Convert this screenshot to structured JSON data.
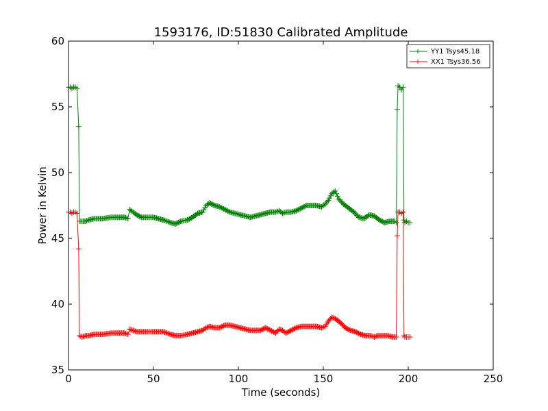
{
  "chart_data": {
    "type": "line",
    "title": "1593176, ID:51830 Calibrated Amplitude",
    "xlabel": "Time (seconds)",
    "ylabel": "Power in Kelvin",
    "xlim": [
      0,
      250
    ],
    "ylim": [
      35,
      60
    ],
    "xticks": [
      0,
      50,
      100,
      150,
      200,
      250
    ],
    "yticks": [
      35,
      40,
      45,
      50,
      55,
      60
    ],
    "grid": false,
    "legend_position": "top-right",
    "series": [
      {
        "name": "YY1 Tsys45.18",
        "color": "#008000",
        "marker": "+",
        "points": [
          [
            0,
            56.5
          ],
          [
            1,
            56.5
          ],
          [
            2,
            56.4
          ],
          [
            3,
            56.5
          ],
          [
            4,
            56.5
          ],
          [
            5,
            56.4
          ],
          [
            6,
            53.5
          ],
          [
            6.5,
            46.3
          ],
          [
            8,
            46.3
          ],
          [
            10,
            46.3
          ],
          [
            12,
            46.4
          ],
          [
            15,
            46.5
          ],
          [
            20,
            46.5
          ],
          [
            25,
            46.6
          ],
          [
            30,
            46.6
          ],
          [
            33,
            46.6
          ],
          [
            35,
            46.5
          ],
          [
            36,
            47.2
          ],
          [
            38,
            47.0
          ],
          [
            40,
            46.8
          ],
          [
            43,
            46.6
          ],
          [
            46,
            46.6
          ],
          [
            50,
            46.6
          ],
          [
            53,
            46.5
          ],
          [
            56,
            46.4
          ],
          [
            60,
            46.2
          ],
          [
            63,
            46.1
          ],
          [
            66,
            46.3
          ],
          [
            70,
            46.4
          ],
          [
            73,
            46.6
          ],
          [
            76,
            46.9
          ],
          [
            79,
            47.0
          ],
          [
            81,
            47.5
          ],
          [
            83,
            47.7
          ],
          [
            86,
            47.5
          ],
          [
            89,
            47.4
          ],
          [
            92,
            47.2
          ],
          [
            95,
            47.0
          ],
          [
            98,
            46.9
          ],
          [
            101,
            46.8
          ],
          [
            104,
            46.7
          ],
          [
            107,
            46.6
          ],
          [
            110,
            46.7
          ],
          [
            113,
            46.8
          ],
          [
            116,
            46.9
          ],
          [
            119,
            47.0
          ],
          [
            122,
            47.0
          ],
          [
            124,
            47.1
          ],
          [
            126,
            46.9
          ],
          [
            128,
            47.0
          ],
          [
            131,
            47.0
          ],
          [
            134,
            47.1
          ],
          [
            137,
            47.3
          ],
          [
            140,
            47.5
          ],
          [
            143,
            47.5
          ],
          [
            146,
            47.5
          ],
          [
            149,
            47.4
          ],
          [
            151,
            47.6
          ],
          [
            153,
            47.9
          ],
          [
            155,
            48.4
          ],
          [
            157,
            48.6
          ],
          [
            159,
            48.0
          ],
          [
            162,
            47.6
          ],
          [
            165,
            47.3
          ],
          [
            168,
            47.0
          ],
          [
            171,
            46.6
          ],
          [
            174,
            46.5
          ],
          [
            177,
            46.8
          ],
          [
            180,
            46.7
          ],
          [
            183,
            46.4
          ],
          [
            186,
            46.2
          ],
          [
            189,
            46.3
          ],
          [
            192,
            46.3
          ],
          [
            193,
            46.2
          ],
          [
            193.5,
            54.8
          ],
          [
            194,
            56.6
          ],
          [
            195,
            56.5
          ],
          [
            196,
            56.3
          ],
          [
            197,
            56.5
          ],
          [
            197.5,
            46.4
          ],
          [
            198,
            46.2
          ],
          [
            199,
            46.3
          ],
          [
            200,
            46.2
          ],
          [
            201,
            46.2
          ]
        ]
      },
      {
        "name": "XX1 Tsys36.56",
        "color": "#ff0000",
        "marker": "+",
        "points": [
          [
            0,
            47.0
          ],
          [
            1,
            47.0
          ],
          [
            2,
            46.9
          ],
          [
            3,
            47.0
          ],
          [
            4,
            47.0
          ],
          [
            5,
            46.9
          ],
          [
            6,
            44.2
          ],
          [
            6.5,
            37.6
          ],
          [
            8,
            37.5
          ],
          [
            10,
            37.6
          ],
          [
            12,
            37.6
          ],
          [
            15,
            37.7
          ],
          [
            20,
            37.7
          ],
          [
            25,
            37.8
          ],
          [
            30,
            37.8
          ],
          [
            33,
            37.8
          ],
          [
            35,
            37.7
          ],
          [
            36,
            38.1
          ],
          [
            38,
            38.0
          ],
          [
            40,
            37.9
          ],
          [
            43,
            37.9
          ],
          [
            46,
            37.9
          ],
          [
            50,
            37.9
          ],
          [
            53,
            37.9
          ],
          [
            56,
            37.9
          ],
          [
            60,
            37.7
          ],
          [
            63,
            37.6
          ],
          [
            66,
            37.6
          ],
          [
            70,
            37.7
          ],
          [
            73,
            37.8
          ],
          [
            76,
            37.9
          ],
          [
            79,
            38.0
          ],
          [
            81,
            38.2
          ],
          [
            83,
            38.3
          ],
          [
            86,
            38.2
          ],
          [
            89,
            38.2
          ],
          [
            92,
            38.4
          ],
          [
            95,
            38.4
          ],
          [
            98,
            38.3
          ],
          [
            101,
            38.2
          ],
          [
            104,
            38.1
          ],
          [
            107,
            38.0
          ],
          [
            110,
            38.0
          ],
          [
            113,
            38.0
          ],
          [
            116,
            38.2
          ],
          [
            119,
            38.0
          ],
          [
            122,
            37.8
          ],
          [
            124,
            38.1
          ],
          [
            126,
            38.0
          ],
          [
            128,
            37.8
          ],
          [
            131,
            38.0
          ],
          [
            134,
            38.2
          ],
          [
            137,
            38.3
          ],
          [
            140,
            38.3
          ],
          [
            143,
            38.3
          ],
          [
            146,
            38.3
          ],
          [
            149,
            38.2
          ],
          [
            151,
            38.3
          ],
          [
            153,
            38.7
          ],
          [
            155,
            39.0
          ],
          [
            157,
            38.9
          ],
          [
            160,
            38.6
          ],
          [
            163,
            38.2
          ],
          [
            166,
            38.0
          ],
          [
            169,
            37.9
          ],
          [
            172,
            37.7
          ],
          [
            175,
            37.6
          ],
          [
            178,
            37.6
          ],
          [
            180,
            37.5
          ],
          [
            182,
            37.6
          ],
          [
            185,
            37.6
          ],
          [
            188,
            37.6
          ],
          [
            191,
            37.5
          ],
          [
            193,
            37.5
          ],
          [
            193.5,
            45.2
          ],
          [
            194,
            47.0
          ],
          [
            195,
            47.0
          ],
          [
            196,
            46.9
          ],
          [
            197,
            47.0
          ],
          [
            197.5,
            37.6
          ],
          [
            198,
            37.5
          ],
          [
            199,
            37.5
          ],
          [
            200,
            37.5
          ],
          [
            201,
            37.5
          ]
        ]
      }
    ]
  }
}
